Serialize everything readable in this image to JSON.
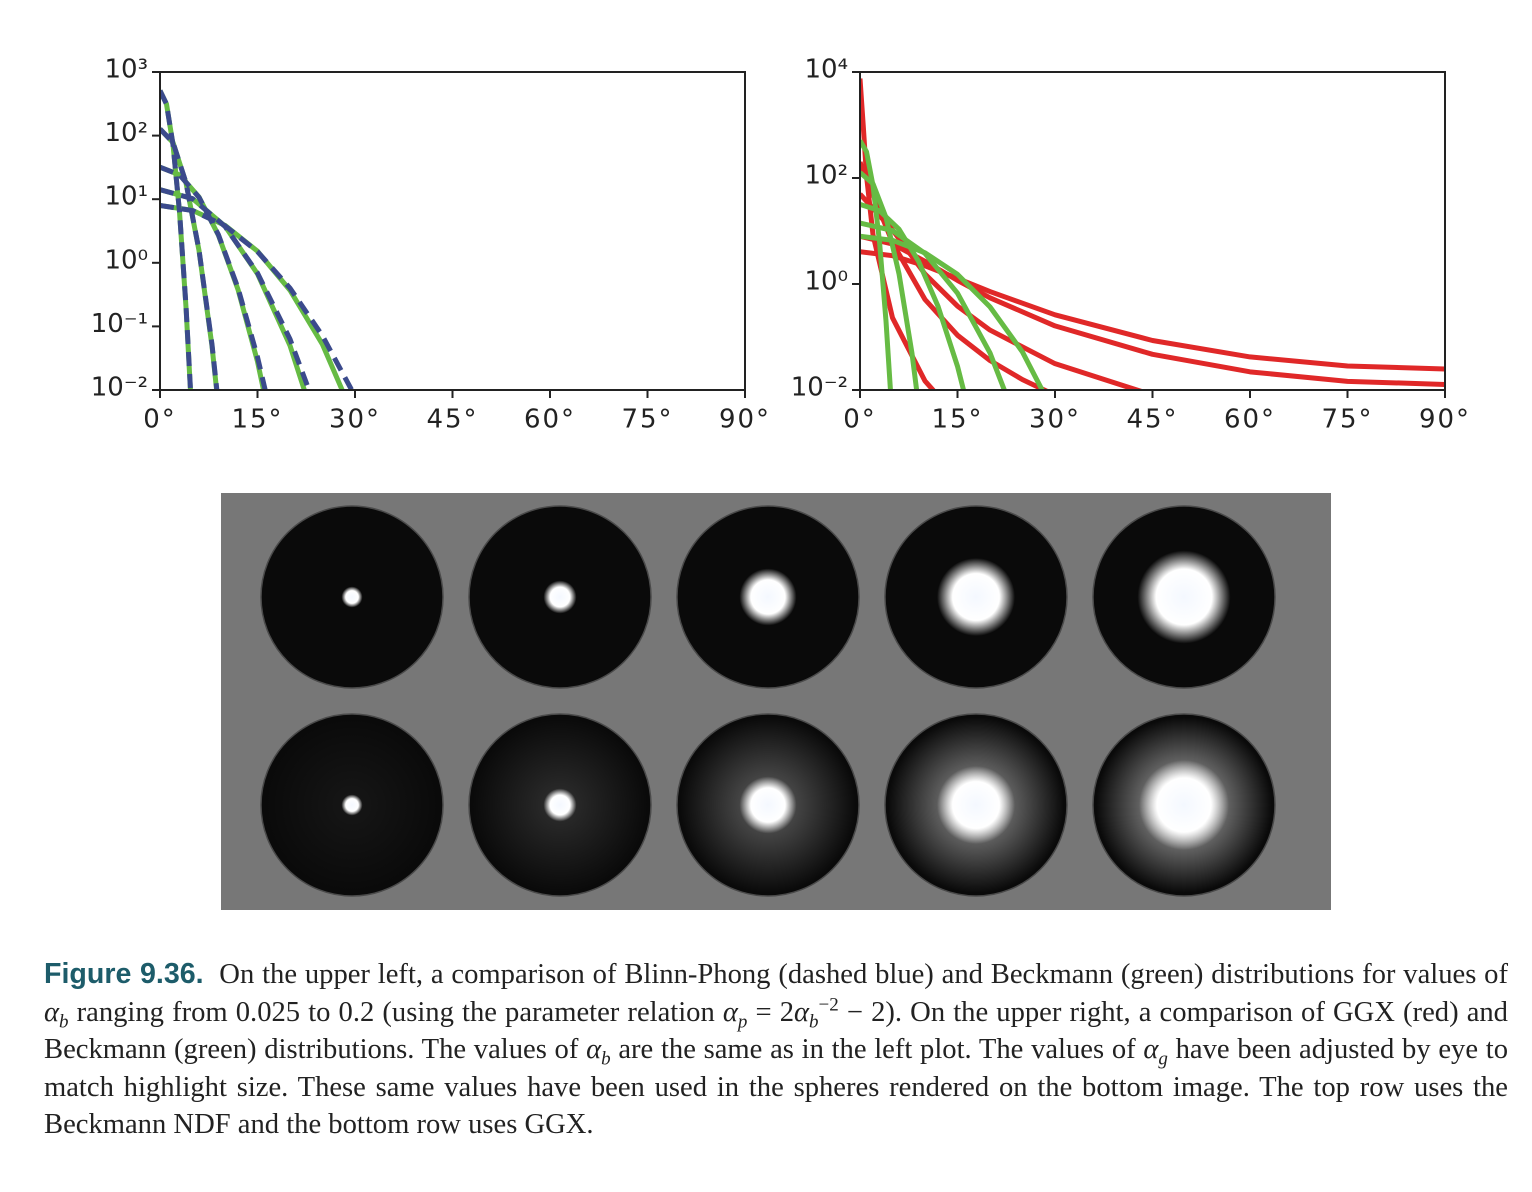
{
  "chart_data": [
    {
      "type": "line",
      "log_y": true,
      "xlim": [
        0,
        90
      ],
      "ylim": [
        0.01,
        1000
      ],
      "xticks": [
        {
          "value": 0,
          "label": "0°"
        },
        {
          "value": 15,
          "label": "15°"
        },
        {
          "value": 30,
          "label": "30°"
        },
        {
          "value": 45,
          "label": "45°"
        },
        {
          "value": 60,
          "label": "60°"
        },
        {
          "value": 75,
          "label": "75°"
        },
        {
          "value": 90,
          "label": "90°"
        }
      ],
      "yticks": [
        {
          "value": 1000,
          "label": "10³"
        },
        {
          "value": 100,
          "label": "10²"
        },
        {
          "value": 10,
          "label": "10¹"
        },
        {
          "value": 1,
          "label": "10⁰"
        },
        {
          "value": 0.1,
          "label": "10⁻¹"
        },
        {
          "value": 0.01,
          "label": "10⁻²"
        }
      ],
      "series": [
        {
          "color": "#66bb44",
          "dashed": false,
          "x": [
            0,
            1,
            2,
            3,
            4,
            5
          ],
          "values": [
            509,
            313,
            72,
            6.3,
            0.2,
            0.0025
          ]
        },
        {
          "color": "#66bb44",
          "dashed": false,
          "x": [
            0,
            2,
            4,
            6,
            8,
            10
          ],
          "values": [
            127,
            78,
            18,
            1.56,
            0.049,
            0.00056
          ]
        },
        {
          "color": "#66bb44",
          "dashed": false,
          "x": [
            0,
            3,
            6,
            9,
            12,
            15,
            18
          ],
          "values": [
            31.8,
            24.2,
            10.8,
            2.7,
            0.38,
            0.028,
            0.001
          ]
        },
        {
          "color": "#66bb44",
          "dashed": false,
          "x": [
            0,
            5,
            10,
            15,
            20,
            25
          ],
          "values": [
            14.1,
            10.2,
            3.77,
            0.67,
            0.05,
            0.0013
          ]
        },
        {
          "color": "#66bb44",
          "dashed": false,
          "x": [
            0,
            5,
            10,
            15,
            20,
            25,
            30
          ],
          "values": [
            7.96,
            6.67,
            3.88,
            1.52,
            0.37,
            0.052,
            0.0034
          ]
        },
        {
          "color": "#3b4a8c",
          "dashed": true,
          "x": [
            0,
            1,
            2,
            3,
            4,
            5
          ],
          "values": [
            509,
            313,
            72.5,
            6.4,
            0.21,
            0.0026
          ]
        },
        {
          "color": "#3b4a8c",
          "dashed": true,
          "x": [
            0,
            2,
            4,
            6,
            8,
            10
          ],
          "values": [
            127.3,
            78,
            18.2,
            1.59,
            0.052,
            0.00063
          ]
        },
        {
          "color": "#3b4a8c",
          "dashed": true,
          "x": [
            0,
            3,
            6,
            9,
            12,
            15,
            18
          ],
          "values": [
            31.8,
            24.2,
            10.7,
            2.74,
            0.4,
            0.033,
            0.0016
          ]
        },
        {
          "color": "#3b4a8c",
          "dashed": true,
          "x": [
            0,
            5,
            10,
            15,
            20,
            25
          ],
          "values": [
            14.15,
            10.2,
            3.74,
            0.69,
            0.063,
            0.0027
          ]
        },
        {
          "color": "#3b4a8c",
          "dashed": true,
          "x": [
            0,
            5,
            10,
            15,
            20,
            25,
            30
          ],
          "values": [
            7.96,
            6.63,
            3.82,
            1.5,
            0.4,
            0.071,
            0.008
          ]
        }
      ]
    },
    {
      "type": "line",
      "log_y": true,
      "xlim": [
        0,
        90
      ],
      "ylim": [
        0.01,
        10000
      ],
      "xticks": [
        {
          "value": 0,
          "label": "0°"
        },
        {
          "value": 15,
          "label": "15°"
        },
        {
          "value": 30,
          "label": "30°"
        },
        {
          "value": 45,
          "label": "45°"
        },
        {
          "value": 60,
          "label": "60°"
        },
        {
          "value": 75,
          "label": "75°"
        },
        {
          "value": 90,
          "label": "90°"
        }
      ],
      "yticks": [
        {
          "value": 10000,
          "label": "10⁴"
        },
        {
          "value": 100,
          "label": "10²"
        },
        {
          "value": 1,
          "label": "10⁰"
        },
        {
          "value": 0.01,
          "label": "10⁻²"
        }
      ],
      "series": [
        {
          "color": "#e02828",
          "dashed": false,
          "x": [
            0,
            0.5,
            1,
            2,
            5,
            10,
            15
          ],
          "values": [
            7534,
            961,
            111,
            8.47,
            0.23,
            0.0148,
            0.003
          ]
        },
        {
          "color": "#e02828",
          "dashed": false,
          "x": [
            0,
            5,
            10,
            15,
            20,
            25,
            30
          ],
          "values": [
            199,
            6.02,
            0.51,
            0.108,
            0.036,
            0.0157,
            0.008
          ]
        },
        {
          "color": "#e02828",
          "dashed": false,
          "x": [
            0,
            5,
            10,
            15,
            20,
            30,
            45
          ],
          "values": [
            49.7,
            10.5,
            1.54,
            0.383,
            0.135,
            0.0314,
            0.00804
          ]
        },
        {
          "color": "#e02828",
          "dashed": false,
          "x": [
            0,
            5,
            10,
            15,
            20,
            30,
            45,
            60,
            75,
            90
          ],
          "values": [
            7.96,
            5.69,
            2.68,
            1.17,
            0.549,
            0.162,
            0.0471,
            0.022,
            0.01454,
            0.01273
          ]
        },
        {
          "color": "#e02828",
          "dashed": false,
          "x": [
            0,
            5,
            10,
            15,
            20,
            30,
            45,
            60,
            75,
            90
          ],
          "values": [
            4.06,
            3.42,
            2.21,
            1.27,
            0.72,
            0.262,
            0.0859,
            0.0421,
            0.0284,
            0.02496
          ]
        },
        {
          "color": "#66bb44",
          "dashed": false,
          "x": [
            0,
            1,
            2,
            3,
            4,
            5
          ],
          "values": [
            509,
            313,
            72,
            6.3,
            0.2,
            0.0025
          ]
        },
        {
          "color": "#66bb44",
          "dashed": false,
          "x": [
            0,
            2,
            4,
            6,
            8,
            10
          ],
          "values": [
            127,
            78,
            18,
            1.56,
            0.049,
            0.00056
          ]
        },
        {
          "color": "#66bb44",
          "dashed": false,
          "x": [
            0,
            3,
            6,
            9,
            12,
            15,
            18
          ],
          "values": [
            31.8,
            24.2,
            10.8,
            2.7,
            0.38,
            0.028,
            0.001
          ]
        },
        {
          "color": "#66bb44",
          "dashed": false,
          "x": [
            0,
            5,
            10,
            15,
            20,
            25
          ],
          "values": [
            14.1,
            10.2,
            3.77,
            0.67,
            0.05,
            0.0013
          ]
        },
        {
          "color": "#66bb44",
          "dashed": false,
          "x": [
            0,
            5,
            10,
            15,
            20,
            25,
            30
          ],
          "values": [
            7.96,
            6.67,
            3.88,
            1.52,
            0.37,
            0.052,
            0.0034
          ]
        }
      ]
    }
  ],
  "caption": {
    "label": "Figure 9.36.",
    "runs": [
      "On the upper left, a comparison of Blinn-Phong (dashed blue) and Beckmann (green) distributions for values of ",
      "α",
      "b",
      " ranging from 0.025 to 0.2 (using the parameter relation ",
      "α",
      "p",
      " = 2",
      "α",
      "b",
      "−2",
      " − 2). On the upper right, a comparison of GGX (red) and Beckmann (green) distributions. The values of ",
      "α",
      "b",
      " are the same as in the left plot. The values of ",
      "α",
      "g",
      " have been adjusted by eye to match highlight size. These same values have been used in the spheres rendered on the bottom image. The top row uses the Beckmann NDF and the bottom row uses GGX."
    ]
  }
}
